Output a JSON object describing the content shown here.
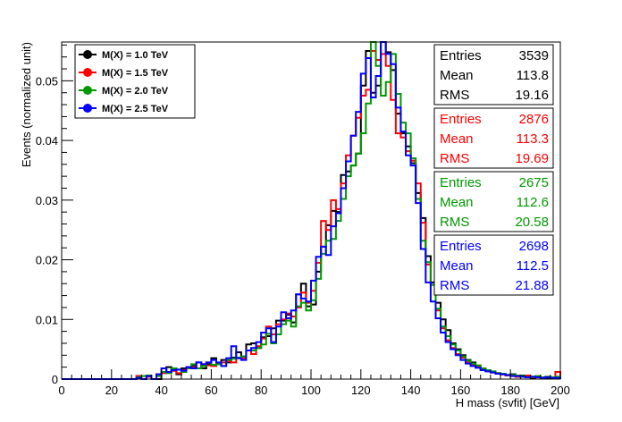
{
  "chart_data": {
    "type": "histogram",
    "title": "",
    "xlabel": "H mass (svfit) [GeV]",
    "ylabel": "Events (normalized unit)",
    "xlim": [
      0,
      200
    ],
    "ylim": [
      0,
      0.0565
    ],
    "bin_width": 2,
    "x_ticks": [
      0,
      20,
      40,
      60,
      80,
      100,
      120,
      140,
      160,
      180,
      200
    ],
    "y_ticks": [
      0,
      0.01,
      0.02,
      0.03,
      0.04,
      0.05
    ],
    "y_tick_labels": [
      "0",
      "0.01",
      "0.02",
      "0.03",
      "0.04",
      "0.05"
    ],
    "legend_position": "top-left",
    "grid": false,
    "series": [
      {
        "name": "M(X) = 1.0 TeV",
        "color": "#000000",
        "stats": {
          "entries": "3539",
          "mean": "113.8",
          "rms": "19.16"
        },
        "values": [
          0,
          0,
          0,
          0,
          0,
          0,
          0,
          0,
          0,
          0,
          0,
          0,
          0,
          0,
          0,
          0.0005,
          0,
          0.0005,
          0,
          0,
          0.0012,
          0.002,
          0.0014,
          0.0008,
          0.0018,
          0.002,
          0.0022,
          0.0028,
          0.0018,
          0.0025,
          0.0035,
          0.0026,
          0.0032,
          0.0028,
          0.0036,
          0.0045,
          0.0038,
          0.0058,
          0.006,
          0.0052,
          0.007,
          0.0072,
          0.0085,
          0.0098,
          0.0098,
          0.0108,
          0.0095,
          0.0142,
          0.016,
          0.0122,
          0.0125,
          0.018,
          0.0222,
          0.0258,
          0.0282,
          0.028,
          0.0342,
          0.0348,
          0.0358,
          0.0378,
          0.0492,
          0.055,
          0.048,
          0.0492,
          0.0568,
          0.0548,
          0.0518,
          0.0445,
          0.0412,
          0.039,
          0.0362,
          0.0312,
          0.027,
          0.0206,
          0.0162,
          0.0128,
          0.01,
          0.0082,
          0.006,
          0.005,
          0.004,
          0.0032,
          0.0028,
          0.0022,
          0.0018,
          0.0014,
          0.0012,
          0.001,
          0.0008,
          0.0006,
          0.0008,
          0.0004,
          0.0006,
          0.0003,
          0.0002,
          0.0004,
          0.0003,
          0.0002,
          0.0002,
          0.0002
        ]
      },
      {
        "name": "M(X) = 1.5 TeV",
        "color": "#ff0000",
        "stats": {
          "entries": "2876",
          "mean": "113.3",
          "rms": "19.69"
        },
        "values": [
          0,
          0,
          0,
          0,
          0,
          0,
          0,
          0,
          0,
          0,
          0,
          0,
          0,
          0,
          0,
          0.0005,
          0,
          0.0004,
          0,
          0.0008,
          0.001,
          0.0012,
          0.0014,
          0.001,
          0.0015,
          0.002,
          0.002,
          0.0018,
          0.0025,
          0.0023,
          0.0022,
          0.0025,
          0.0028,
          0.003,
          0.0028,
          0.0035,
          0.0035,
          0.0048,
          0.0042,
          0.0055,
          0.0068,
          0.0088,
          0.0075,
          0.0092,
          0.01,
          0.011,
          0.0105,
          0.012,
          0.0145,
          0.0128,
          0.0148,
          0.0195,
          0.0265,
          0.025,
          0.03,
          0.0285,
          0.0328,
          0.0375,
          0.0408,
          0.0438,
          0.0475,
          0.0485,
          0.055,
          0.0535,
          0.0545,
          0.0525,
          0.0468,
          0.0412,
          0.0405,
          0.0382,
          0.0366,
          0.0328,
          0.0262,
          0.0192,
          0.0158,
          0.0115,
          0.0085,
          0.0065,
          0.0052,
          0.0042,
          0.0036,
          0.0028,
          0.0024,
          0.002,
          0.0016,
          0.0014,
          0.0011,
          0.001,
          0.0008,
          0.0006,
          0.0006,
          0.0004,
          0.0004,
          0.0006,
          0.0003,
          0.0004,
          0.0002,
          0.0004,
          0.0002,
          0.0012
        ]
      },
      {
        "name": "M(X) = 2.0 TeV",
        "color": "#009900",
        "stats": {
          "entries": "2675",
          "mean": "112.6",
          "rms": "20.58"
        },
        "values": [
          0,
          0,
          0,
          0,
          0,
          0,
          0,
          0,
          0,
          0,
          0,
          0,
          0,
          0,
          0,
          0.0003,
          0.0005,
          0.0006,
          0,
          0.0005,
          0.0012,
          0.001,
          0.0018,
          0.0016,
          0.0012,
          0.0018,
          0.0025,
          0.0018,
          0.0022,
          0.0028,
          0.0024,
          0.0025,
          0.0022,
          0.0032,
          0.0034,
          0.0036,
          0.0038,
          0.0048,
          0.0048,
          0.0052,
          0.0058,
          0.0076,
          0.006,
          0.0075,
          0.0092,
          0.0098,
          0.0088,
          0.0122,
          0.0128,
          0.0115,
          0.0132,
          0.0168,
          0.021,
          0.0232,
          0.0235,
          0.0265,
          0.0302,
          0.034,
          0.0358,
          0.0378,
          0.0412,
          0.0462,
          0.0565,
          0.0525,
          0.0475,
          0.0498,
          0.0545,
          0.0478,
          0.043,
          0.0412,
          0.037,
          0.0302,
          0.0232,
          0.0196,
          0.0158,
          0.0118,
          0.0088,
          0.0072,
          0.0058,
          0.0048,
          0.0038,
          0.0031,
          0.0026,
          0.0023,
          0.0018,
          0.0015,
          0.0013,
          0.001,
          0.0009,
          0.0007,
          0.0007,
          0.0006,
          0.0005,
          0.0003,
          0.0004,
          0.0005,
          0.0003,
          0.0004,
          0.0003,
          0.0004
        ]
      },
      {
        "name": "M(X) = 2.5 TeV",
        "color": "#0000ff",
        "stats": {
          "entries": "2698",
          "mean": "112.5",
          "rms": "21.88"
        },
        "values": [
          0,
          0,
          0,
          0,
          0,
          0,
          0,
          0,
          0,
          0,
          0,
          0,
          0,
          0,
          0,
          0.0002,
          0,
          0.0005,
          0,
          0.0008,
          0.0018,
          0.0012,
          0.0015,
          0.0016,
          0.0014,
          0.002,
          0.0018,
          0.0028,
          0.0025,
          0.0028,
          0.0032,
          0.0028,
          0.0022,
          0.0035,
          0.0055,
          0.0035,
          0.0032,
          0.0048,
          0.0052,
          0.0062,
          0.0078,
          0.0085,
          0.0062,
          0.0088,
          0.0112,
          0.0102,
          0.0115,
          0.0142,
          0.0135,
          0.013,
          0.0165,
          0.0205,
          0.0222,
          0.0208,
          0.0256,
          0.0278,
          0.032,
          0.0365,
          0.0408,
          0.0448,
          0.0512,
          0.0538,
          0.0472,
          0.0508,
          0.0568,
          0.0545,
          0.0528,
          0.0455,
          0.0415,
          0.0375,
          0.0358,
          0.0295,
          0.0218,
          0.0162,
          0.013,
          0.0102,
          0.0078,
          0.0062,
          0.005,
          0.004,
          0.0032,
          0.0026,
          0.0022,
          0.0019,
          0.0015,
          0.0013,
          0.0011,
          0.0009,
          0.0008,
          0.0007,
          0.0005,
          0.0005,
          0.0004,
          0.0003,
          0.0004,
          0.0003,
          0.0002,
          0.0003,
          0.0002,
          0.0002
        ]
      }
    ]
  },
  "stats_labels": {
    "entries": "Entries",
    "mean": "Mean",
    "rms": "RMS"
  }
}
